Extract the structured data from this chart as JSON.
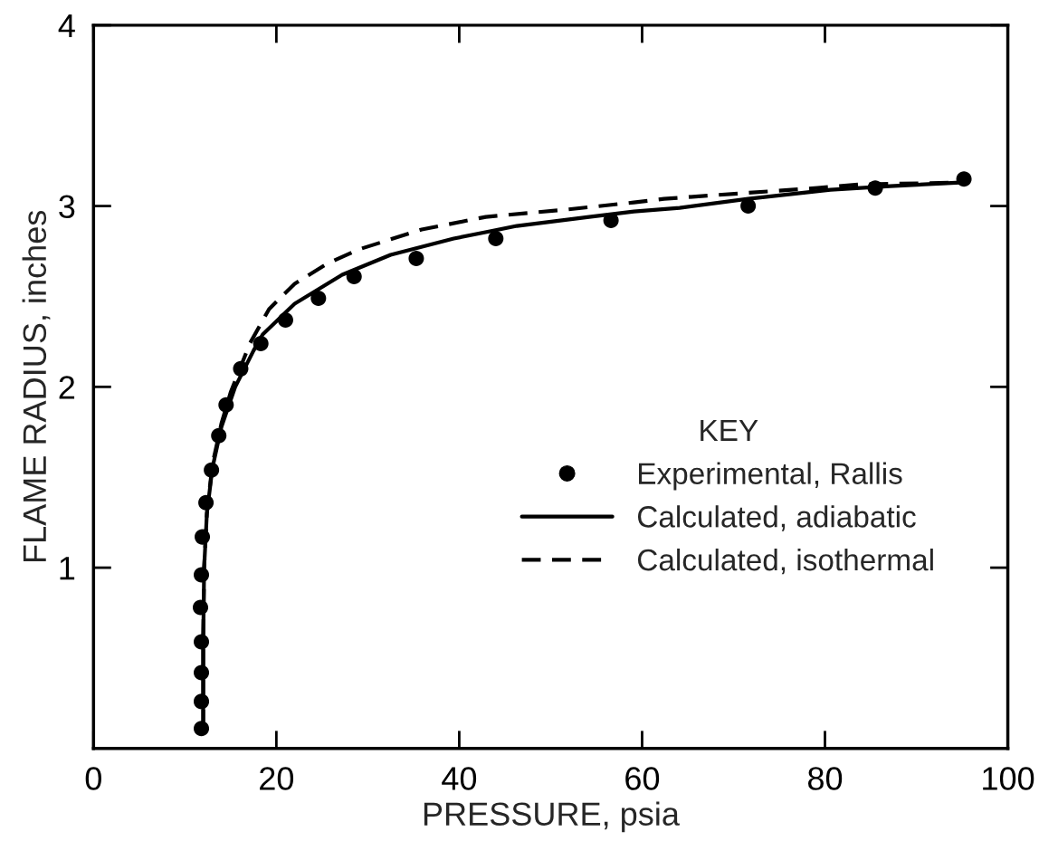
{
  "chart_data": {
    "type": "line",
    "xlabel": "PRESSURE, psia",
    "ylabel": "FLAME RADIUS, inches",
    "xlim": [
      0,
      100
    ],
    "ylim": [
      0,
      4
    ],
    "xticks": [
      0,
      20,
      40,
      60,
      80,
      100
    ],
    "yticks": [
      1,
      2,
      3,
      4
    ],
    "legend": "bottom right",
    "legend_title": "KEY",
    "grid": false,
    "series": [
      {
        "name": "Experimental, Rallis",
        "type": "scatter",
        "marker": "circle",
        "color": "#000000",
        "x": [
          11.8,
          11.8,
          11.8,
          11.8,
          11.7,
          11.8,
          11.9,
          12.3,
          12.9,
          13.7,
          14.5,
          16.1,
          18.3,
          21.0,
          24.6,
          28.5,
          35.3,
          44.0,
          56.6,
          71.6,
          85.5,
          95.2
        ],
        "values": [
          0.11,
          0.26,
          0.42,
          0.59,
          0.78,
          0.96,
          1.17,
          1.36,
          1.54,
          1.73,
          1.9,
          2.1,
          2.24,
          2.37,
          2.49,
          2.61,
          2.71,
          2.82,
          2.92,
          3.0,
          3.1,
          3.15
        ]
      },
      {
        "name": "Calculated, adiabatic",
        "type": "line",
        "line_style": "solid",
        "color": "#000000",
        "x": [
          12.0,
          12.0,
          12.1,
          12.4,
          13.0,
          14.0,
          15.5,
          17.5,
          18.5,
          22.0,
          27.2,
          32.5,
          39.4,
          46.3,
          54.2,
          59.1,
          64.1,
          71.6,
          80.6,
          87.1,
          94.8
        ],
        "values": [
          0.11,
          0.6,
          1.0,
          1.3,
          1.55,
          1.78,
          2.0,
          2.2,
          2.29,
          2.46,
          2.62,
          2.73,
          2.82,
          2.89,
          2.94,
          2.97,
          2.99,
          3.04,
          3.09,
          3.11,
          3.13
        ]
      },
      {
        "name": "Calculated, isothermal",
        "type": "line",
        "line_style": "dashed",
        "color": "#000000",
        "x": [
          12.0,
          12.0,
          12.1,
          12.4,
          13.0,
          14.0,
          15.0,
          17.1,
          19.2,
          22.0,
          25.5,
          29.0,
          35.9,
          42.9,
          51.6,
          59.1,
          62.4,
          70.7,
          79.2,
          83.9,
          94.8
        ],
        "values": [
          0.11,
          0.6,
          1.0,
          1.3,
          1.57,
          1.8,
          1.97,
          2.24,
          2.43,
          2.57,
          2.68,
          2.76,
          2.87,
          2.94,
          2.98,
          3.02,
          3.04,
          3.07,
          3.1,
          3.12,
          3.13
        ]
      }
    ]
  }
}
